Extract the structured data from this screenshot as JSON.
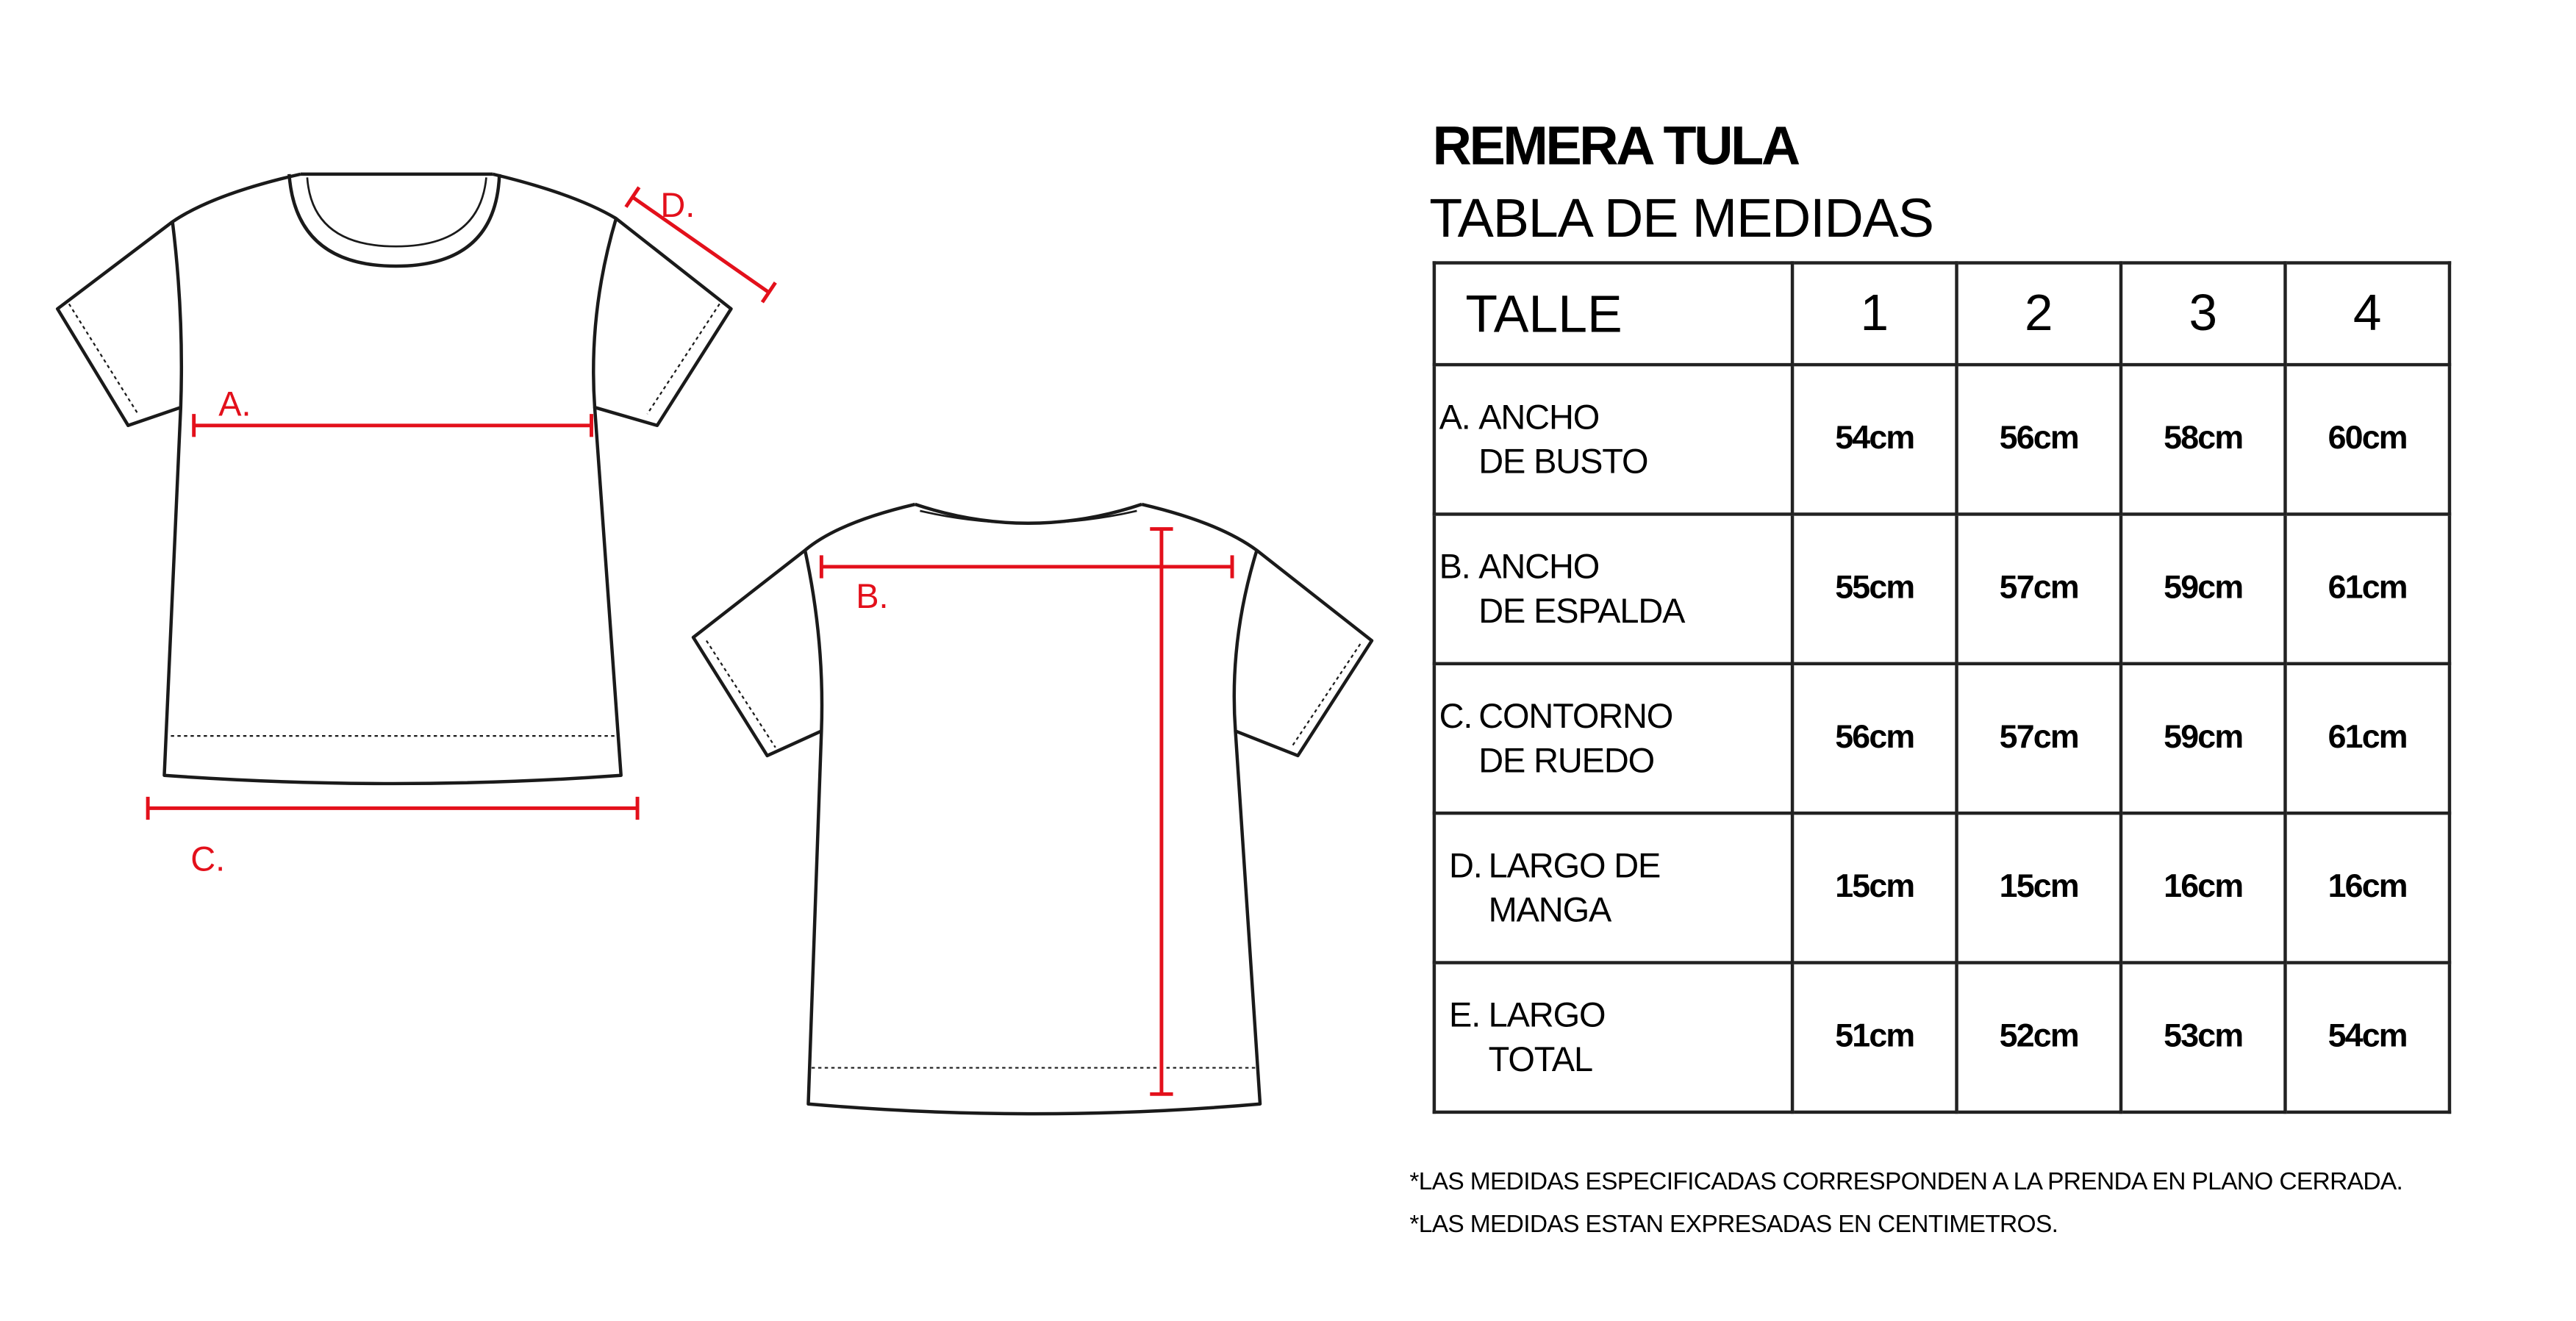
{
  "header": {
    "title": "REMERA TULA",
    "subtitle": "TABLA DE MEDIDAS"
  },
  "table": {
    "size_label": "TALLE",
    "sizes": [
      "1",
      "2",
      "3",
      "4"
    ],
    "rows": [
      {
        "letter": "A.",
        "line1": "ANCHO",
        "line2": "DE BUSTO",
        "values": [
          "54cm",
          "56cm",
          "58cm",
          "60cm"
        ]
      },
      {
        "letter": "B.",
        "line1": "ANCHO",
        "line2": "DE ESPALDA",
        "values": [
          "55cm",
          "57cm",
          "59cm",
          "61cm"
        ]
      },
      {
        "letter": "C.",
        "line1": "CONTORNO",
        "line2": "DE RUEDO",
        "values": [
          "56cm",
          "57cm",
          "59cm",
          "61cm"
        ]
      },
      {
        "letter": "D.",
        "line1": "LARGO DE",
        "line2": "MANGA",
        "values": [
          "15cm",
          "15cm",
          "16cm",
          "16cm"
        ]
      },
      {
        "letter": "E.",
        "line1": "LARGO",
        "line2": "TOTAL",
        "values": [
          "51cm",
          "52cm",
          "53cm",
          "54cm"
        ]
      }
    ]
  },
  "notes": [
    "*LAS MEDIDAS ESPECIFICADAS CORRESPONDEN A LA PRENDA EN PLANO CERRADA.",
    "*LAS MEDIDAS ESTAN EXPRESADAS EN CENTIMETROS."
  ],
  "diagram": {
    "labels": {
      "a": "A.",
      "b": "B.",
      "c": "C.",
      "d": "D."
    },
    "measure_color": "#e3101b",
    "outline_color": "#1a1a1a"
  }
}
